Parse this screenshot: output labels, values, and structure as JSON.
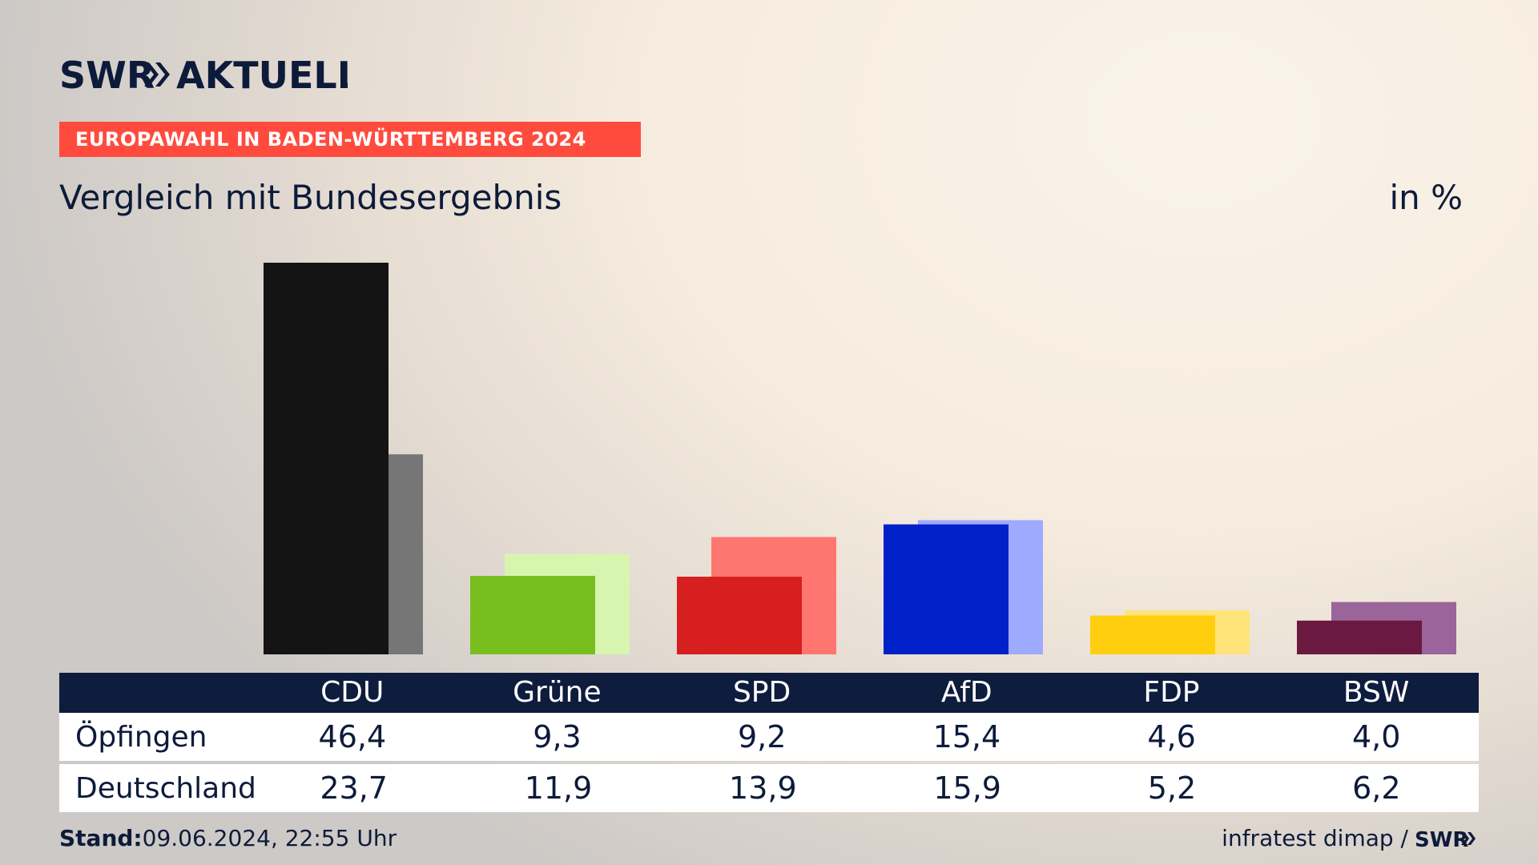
{
  "brand": {
    "logo_text": "SWR AKTUELL",
    "source_logo_text": "SWR"
  },
  "header": {
    "badge": "EUROPAWAHL IN BADEN-WÜRTTEMBERG 2024",
    "subtitle": "Vergleich mit Bundesergebnis",
    "unit": "in %"
  },
  "footer": {
    "stand_label": "Stand:",
    "stand_value": "09.06.2024, 22:55 Uhr",
    "source": "infratest dimap /"
  },
  "table": {
    "rows": [
      {
        "label": "Öpfingen",
        "values": [
          "46,4",
          "9,3",
          "9,2",
          "15,4",
          "4,6",
          "4,0"
        ]
      },
      {
        "label": "Deutschland",
        "values": [
          "23,7",
          "11,9",
          "13,9",
          "15,9",
          "5,2",
          "6,2"
        ]
      }
    ]
  },
  "chart_data": {
    "type": "bar",
    "categories": [
      "CDU",
      "Grüne",
      "SPD",
      "AfD",
      "FDP",
      "BSW"
    ],
    "series": [
      {
        "name": "Öpfingen",
        "values": [
          46.4,
          9.3,
          9.2,
          15.4,
          4.6,
          4.0
        ],
        "colors": [
          "#141414",
          "#78be1f",
          "#d71f1f",
          "#0020c8",
          "#ffcf0f",
          "#6c1941"
        ]
      },
      {
        "name": "Deutschland",
        "values": [
          23.7,
          11.9,
          13.9,
          15.9,
          5.2,
          6.2
        ],
        "colors": [
          "#767676",
          "#d8f5b0",
          "#ff7670",
          "#9eaafd",
          "#ffe47a",
          "#9b649a"
        ]
      }
    ],
    "ylim": [
      0,
      46.4
    ]
  }
}
